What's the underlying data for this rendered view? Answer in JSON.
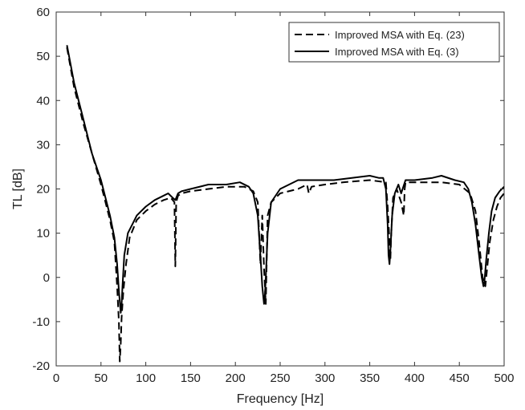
{
  "chart_data": {
    "type": "line",
    "xlabel": "Frequency [Hz]",
    "ylabel": "TL [dB]",
    "xlim": [
      0,
      500
    ],
    "ylim": [
      -20,
      60
    ],
    "xticks": [
      0,
      50,
      100,
      150,
      200,
      250,
      300,
      350,
      400,
      450,
      500
    ],
    "yticks": [
      -20,
      -10,
      0,
      10,
      20,
      30,
      40,
      50,
      60
    ],
    "grid": false,
    "legend_position": "top-right",
    "series": [
      {
        "name": "Improved MSA with Eq. (23)",
        "style": "dashed",
        "color": "#000000",
        "x": [
          12,
          20,
          30,
          40,
          50,
          55,
          60,
          65,
          68,
          70,
          71,
          72,
          73,
          75,
          78,
          82,
          90,
          100,
          110,
          120,
          128,
          132,
          133,
          134,
          136,
          140,
          150,
          170,
          190,
          210,
          220,
          225,
          228,
          230,
          232,
          234,
          236,
          240,
          250,
          270,
          280,
          282,
          285,
          300,
          320,
          350,
          368,
          370,
          372,
          373,
          374,
          376,
          380,
          385,
          388,
          389,
          390,
          395,
          410,
          430,
          450,
          462,
          468,
          472,
          476,
          479,
          481,
          484,
          488,
          492,
          496,
          500
        ],
        "y": [
          52,
          43,
          35,
          28,
          21,
          17,
          13,
          8,
          -2,
          -10,
          -19,
          -15,
          -9,
          -3,
          3,
          9,
          13,
          15,
          16.5,
          17.5,
          18,
          17,
          2.5,
          17,
          18.5,
          19,
          19.5,
          20,
          20.5,
          20.5,
          19.5,
          17,
          3,
          14,
          2,
          -6,
          14,
          17,
          19,
          20,
          21,
          19,
          20.5,
          21,
          21.5,
          22,
          21.5,
          16,
          8,
          4,
          10,
          18,
          20,
          17,
          14,
          20,
          21.5,
          21.5,
          21.5,
          21.5,
          21,
          19,
          15,
          8,
          0,
          -2,
          2,
          8,
          13,
          16,
          18,
          19
        ]
      },
      {
        "name": "Improved MSA with Eq. (3)",
        "style": "solid",
        "color": "#000000",
        "x": [
          12,
          20,
          30,
          40,
          50,
          55,
          60,
          65,
          68,
          70,
          72,
          73,
          74,
          76,
          80,
          85,
          90,
          100,
          110,
          120,
          125,
          130,
          133,
          136,
          140,
          150,
          170,
          190,
          205,
          215,
          220,
          225,
          228,
          230,
          232,
          233,
          234,
          236,
          240,
          250,
          270,
          290,
          310,
          330,
          350,
          360,
          365,
          368,
          370,
          371,
          372,
          373,
          375,
          378,
          382,
          385,
          390,
          400,
          420,
          430,
          445,
          455,
          460,
          464,
          468,
          472,
          475,
          477,
          478,
          480,
          483,
          486,
          490,
          495,
          500
        ],
        "y": [
          52.5,
          44,
          36,
          28,
          22,
          18,
          14,
          9,
          3,
          -3,
          -8,
          -6,
          -2,
          5,
          10,
          12,
          14,
          16,
          17.5,
          18.5,
          19,
          18,
          17.5,
          19,
          19.5,
          20,
          21,
          21,
          21.5,
          20.5,
          19,
          14,
          5,
          -2,
          -6,
          -4,
          0,
          10,
          17,
          20,
          22,
          22,
          22,
          22.5,
          23,
          22.5,
          22.5,
          20,
          12,
          5,
          3,
          6,
          14,
          19,
          21,
          19,
          22,
          22,
          22.5,
          23,
          22,
          21.5,
          20,
          17,
          12,
          5,
          0,
          -2,
          -1,
          4,
          10,
          15,
          18,
          19.5,
          20.5
        ]
      }
    ]
  }
}
